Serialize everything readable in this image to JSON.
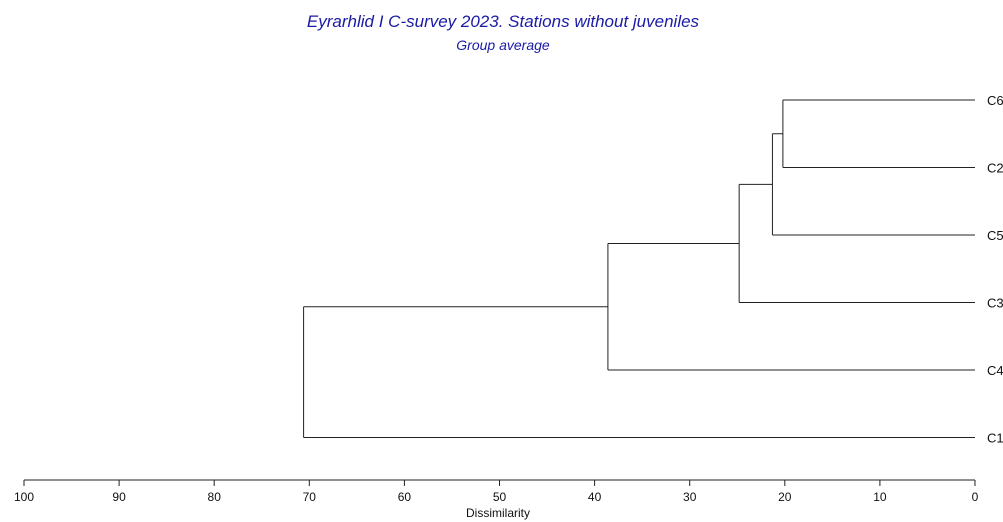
{
  "chart_data": {
    "type": "dendrogram",
    "title": "Eyrarhlid I C-survey 2023. Stations without juveniles",
    "subtitle": "Group average",
    "xlabel": "Dissimilarity",
    "xlim": [
      100,
      0
    ],
    "x_ticks": [
      100,
      90,
      80,
      70,
      60,
      50,
      40,
      30,
      20,
      10,
      0
    ],
    "leaves": [
      "C6",
      "C2",
      "C5",
      "C3",
      "C4",
      "C1"
    ],
    "merges": [
      {
        "a": "C6",
        "b": "C2",
        "height": 20.2
      },
      {
        "a": "C6+C2",
        "b": "C5",
        "height": 21.3
      },
      {
        "a": "C6+C2+C5",
        "b": "C3",
        "height": 24.8
      },
      {
        "a": "C6+C2+C5+C3",
        "b": "C4",
        "height": 38.6
      },
      {
        "a": "C6+C2+C5+C3+C4",
        "b": "C1",
        "height": 70.6
      }
    ],
    "colors": {
      "title": "#1a1aa6",
      "lines": "#222222"
    }
  }
}
